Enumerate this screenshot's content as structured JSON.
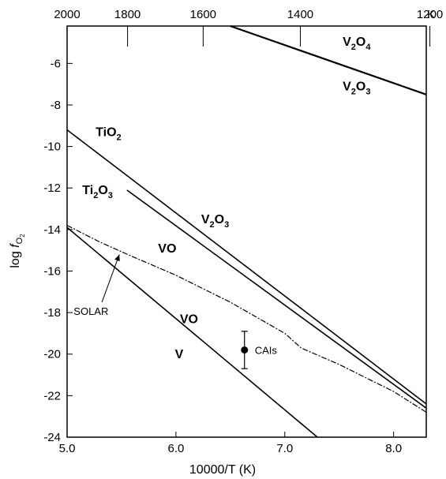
{
  "chart_data": {
    "type": "line",
    "title": "",
    "xlabel": "10000/T (K)",
    "ylabel_main": "log ",
    "ylabel_italic": "f",
    "ylabel_sub": "O",
    "ylabel_subsub": "2",
    "xlim": [
      5.0,
      8.3
    ],
    "ylim": [
      -24,
      -4.2
    ],
    "x_ticks": [
      {
        "v": 5.0,
        "label": "5.0"
      },
      {
        "v": 6.0,
        "label": "6.0"
      },
      {
        "v": 7.0,
        "label": "7.0"
      },
      {
        "v": 8.0,
        "label": "8.0"
      }
    ],
    "y_ticks": [
      {
        "v": -6,
        "label": "-6"
      },
      {
        "v": -8,
        "label": "-8"
      },
      {
        "v": -10,
        "label": "-10"
      },
      {
        "v": -12,
        "label": "-12"
      },
      {
        "v": -14,
        "label": "-14"
      },
      {
        "v": -16,
        "label": "-16"
      },
      {
        "v": -18,
        "label": "-18"
      },
      {
        "v": -20,
        "label": "-20"
      },
      {
        "v": -22,
        "label": "-22"
      },
      {
        "v": -24,
        "label": "-24"
      }
    ],
    "top_axis": {
      "unit_label": "K",
      "ticks": [
        {
          "T": 2000,
          "label": "2000"
        },
        {
          "T": 1800,
          "label": "1800"
        },
        {
          "T": 1600,
          "label": "1600"
        },
        {
          "T": 1400,
          "label": "1400"
        },
        {
          "T": 1200,
          "label": "1200"
        }
      ]
    },
    "series": [
      {
        "key": "v2o4_v2o3",
        "style": "solid",
        "width": 2.2,
        "points": [
          [
            6.5,
            -4.2
          ],
          [
            8.3,
            -7.5
          ]
        ]
      },
      {
        "key": "tio2_ti2o3",
        "style": "solid",
        "width": 1.6,
        "points": [
          [
            5.0,
            -9.2
          ],
          [
            8.3,
            -22.4
          ]
        ]
      },
      {
        "key": "v2o3_vo",
        "style": "solid",
        "width": 1.6,
        "points": [
          [
            5.55,
            -12.1
          ],
          [
            8.3,
            -22.6
          ]
        ]
      },
      {
        "key": "vo_v",
        "style": "solid",
        "width": 1.6,
        "points": [
          [
            5.0,
            -13.9
          ],
          [
            7.3,
            -24.0
          ]
        ]
      },
      {
        "key": "solar",
        "style": "dashed",
        "width": 1.2,
        "points": [
          [
            5.0,
            -13.8
          ],
          [
            5.3,
            -14.6
          ],
          [
            5.6,
            -15.3
          ],
          [
            6.0,
            -16.2
          ],
          [
            6.5,
            -17.5
          ],
          [
            7.0,
            -19.0
          ],
          [
            7.15,
            -19.7
          ],
          [
            7.5,
            -20.5
          ],
          [
            8.0,
            -21.8
          ],
          [
            8.3,
            -22.8
          ]
        ]
      }
    ],
    "data_point": {
      "label": "CAIs",
      "x": 6.63,
      "y": -19.8,
      "err_low": -20.7,
      "err_high": -18.9
    },
    "annotations": [
      {
        "key": "v2o4",
        "parts": [
          {
            "t": "V",
            "sub": false
          },
          {
            "t": "2",
            "sub": true
          },
          {
            "t": "O",
            "sub": false
          },
          {
            "t": "4",
            "sub": true
          }
        ],
        "x": 7.66,
        "y": -5.15
      },
      {
        "key": "v2o3_top",
        "parts": [
          {
            "t": "V",
            "sub": false
          },
          {
            "t": "2",
            "sub": true
          },
          {
            "t": "O",
            "sub": false
          },
          {
            "t": "3",
            "sub": true
          }
        ],
        "x": 7.66,
        "y": -7.3
      },
      {
        "key": "tio2",
        "parts": [
          {
            "t": "TiO",
            "sub": false
          },
          {
            "t": "2",
            "sub": true
          }
        ],
        "x": 5.38,
        "y": -9.5
      },
      {
        "key": "ti2o3",
        "parts": [
          {
            "t": "Ti",
            "sub": false
          },
          {
            "t": "2",
            "sub": true
          },
          {
            "t": "O",
            "sub": false
          },
          {
            "t": "3",
            "sub": true
          }
        ],
        "x": 5.28,
        "y": -12.3
      },
      {
        "key": "v2o3_mid",
        "parts": [
          {
            "t": "V",
            "sub": false
          },
          {
            "t": "2",
            "sub": true
          },
          {
            "t": "O",
            "sub": false
          },
          {
            "t": "3",
            "sub": true
          }
        ],
        "x": 6.36,
        "y": -13.7
      },
      {
        "key": "vo_mid",
        "parts": [
          {
            "t": "VO",
            "sub": false
          }
        ],
        "x": 5.92,
        "y": -15.1
      },
      {
        "key": "vo_low",
        "parts": [
          {
            "t": "VO",
            "sub": false
          }
        ],
        "x": 6.12,
        "y": -18.5
      },
      {
        "key": "v",
        "parts": [
          {
            "t": "V",
            "sub": false
          }
        ],
        "x": 6.03,
        "y": -20.2
      }
    ],
    "solar_label": {
      "text": "SOLAR",
      "x": 5.22,
      "y": -18.1,
      "arrow_from": [
        5.32,
        -17.5
      ],
      "arrow_to": [
        5.48,
        -15.2
      ]
    },
    "grid": false
  }
}
